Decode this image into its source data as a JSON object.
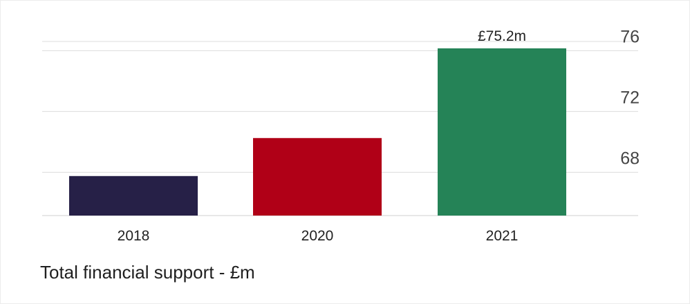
{
  "chart_data": {
    "type": "bar",
    "categories": [
      "2018",
      "2020",
      "2021"
    ],
    "values": [
      66.8,
      69.3,
      75.2
    ],
    "value_labels": [
      "",
      "",
      "£75.2m"
    ],
    "colors": [
      "#262047",
      "#b00017",
      "#258357"
    ],
    "ylim": [
      64.2,
      77.2
    ],
    "yticks": [
      68,
      72,
      76
    ],
    "y_axis_position": "right",
    "grid": true,
    "title": "",
    "xlabel": "",
    "ylabel": ""
  },
  "caption": "Total financial support - £m"
}
